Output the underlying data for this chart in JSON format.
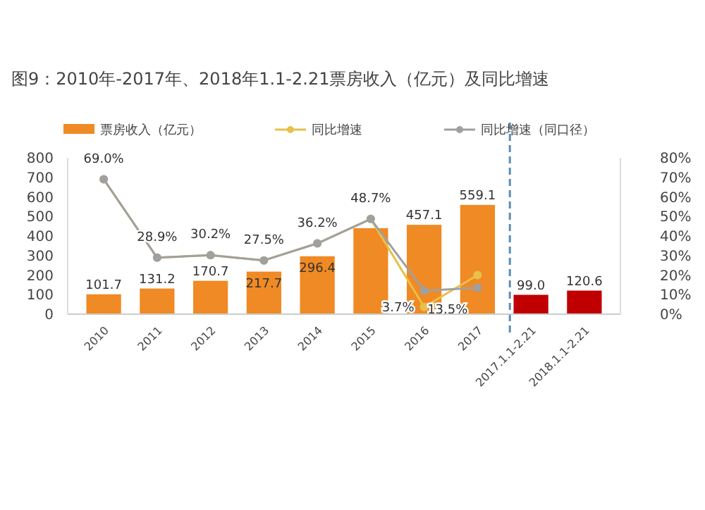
{
  "chart_data": {
    "type": "bar",
    "title": "图9：2010年-2017年、2018年1.1-2.21票房收入（亿元）及同比增速",
    "categories": [
      "2010",
      "2011",
      "2012",
      "2013",
      "2014",
      "2015",
      "2016",
      "2017",
      "2017.1.1-2.21",
      "2018.1.1-2.21"
    ],
    "series": [
      {
        "name": "票房收入（亿元）",
        "color": "#f08a24",
        "colors": [
          "#f08a24",
          "#f08a24",
          "#f08a24",
          "#f08a24",
          "#f08a24",
          "#f08a24",
          "#f08a24",
          "#f08a24",
          "#c00000",
          "#c00000"
        ],
        "values": [
          101.7,
          131.2,
          170.7,
          217.7,
          296.4,
          440,
          457.1,
          559.1,
          99.0,
          120.6
        ],
        "value_labels": [
          "101.7",
          "131.2",
          "170.7",
          "217.7",
          "296.4",
          null,
          "457.1",
          "559.1",
          "99.0",
          "120.6"
        ]
      },
      {
        "name": "同比增速",
        "type": "line",
        "axis": "y2",
        "color": "#e8c04a",
        "values": [
          69.0,
          28.9,
          30.2,
          27.5,
          36.2,
          48.7,
          3.7,
          20,
          null,
          null
        ],
        "value_labels": [
          "69.0%",
          "28.9%",
          "30.2%",
          "27.5%",
          "36.2%",
          "48.7%",
          "3.7%",
          null,
          null,
          null
        ]
      },
      {
        "name": "同比增速（同口径）",
        "type": "line",
        "axis": "y2",
        "color": "#a0a0a0",
        "values": [
          69.0,
          28.9,
          30.2,
          27.5,
          36.2,
          48.7,
          12,
          13.5,
          null,
          null
        ],
        "value_labels": [
          null,
          null,
          null,
          null,
          null,
          null,
          null,
          "13.5%",
          null,
          null
        ]
      }
    ],
    "ylim": [
      0,
      800
    ],
    "yticks": [
      0,
      100,
      200,
      300,
      400,
      500,
      600,
      700,
      800
    ],
    "y2lim": [
      0,
      80
    ],
    "y2ticks": [
      {
        "value": 0,
        "label": "0%"
      },
      {
        "value": 10,
        "label": "10%"
      },
      {
        "value": 20,
        "label": "20%"
      },
      {
        "value": 30,
        "label": "30%"
      },
      {
        "value": 40,
        "label": "40%"
      },
      {
        "value": 50,
        "label": "50%"
      },
      {
        "value": 60,
        "label": "60%"
      },
      {
        "value": 70,
        "label": "70%"
      },
      {
        "value": 80,
        "label": "80%"
      }
    ],
    "legend": "top",
    "grid": false,
    "marker": "circle",
    "line_style": "solid"
  }
}
